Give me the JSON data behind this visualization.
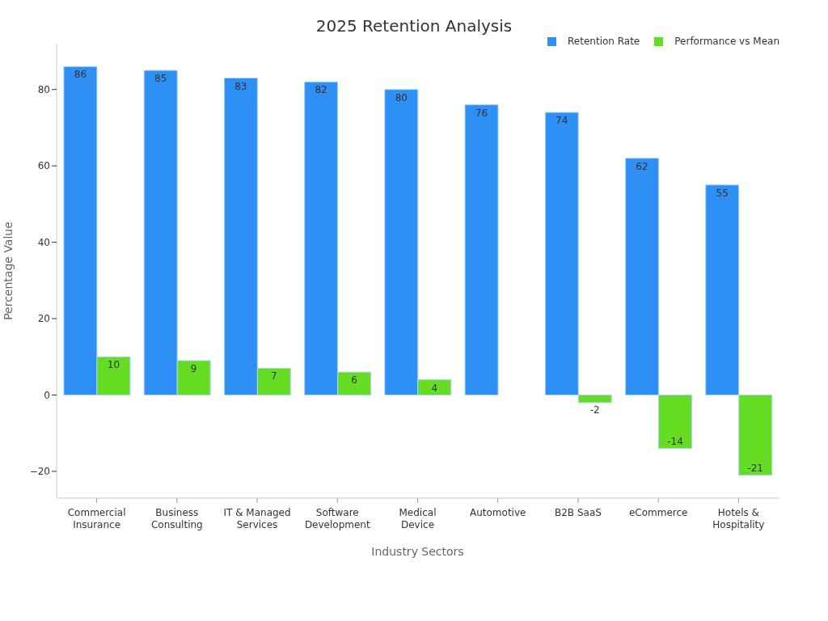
{
  "chart_data": {
    "type": "bar",
    "title": "2025 Retention Analysis",
    "xlabel": "Industry Sectors",
    "ylabel": "Percentage Value",
    "categories": [
      "Commercial\nInsurance",
      "Business\nConsulting",
      "IT & Managed\nServices",
      "Software\nDevelopment",
      "Medical\nDevice",
      "Automotive",
      "B2B SaaS",
      "eCommerce",
      "Hotels &\nHospitality"
    ],
    "series": [
      {
        "name": "Retention Rate",
        "color": "#2e90f5",
        "values": [
          86,
          85,
          83,
          82,
          80,
          76,
          74,
          62,
          55
        ],
        "value_labels": [
          "86",
          "85",
          "83",
          "82",
          "80",
          "76",
          "74",
          "62",
          "55"
        ]
      },
      {
        "name": "Performance vs Mean",
        "color": "#66dd22",
        "values": [
          10,
          9,
          7,
          6,
          4,
          0,
          -2,
          -14,
          -21
        ],
        "value_labels": [
          "10",
          "9",
          "7",
          "6",
          "4",
          null,
          "-2",
          "-14",
          "-21"
        ]
      }
    ],
    "ylim": [
      -27,
      92
    ],
    "yticks": [
      {
        "value": -20,
        "label": "−20"
      },
      0,
      20,
      40,
      60,
      80
    ],
    "grid": false,
    "legend": "top right"
  }
}
